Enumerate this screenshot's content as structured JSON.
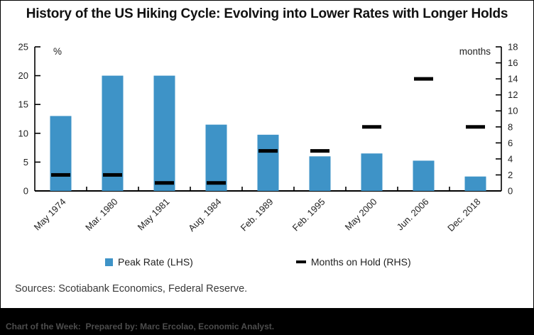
{
  "title": "History of the US Hiking Cycle: Evolving into Lower Rates with Longer Holds",
  "legend": {
    "peak_rate": "Peak Rate (LHS)",
    "months_hold": "Months on Hold (RHS)"
  },
  "sources": "Sources: Scotiabank Economics, Federal Reserve.",
  "footer": "Chart of the Week:  Prepared by: Marc Ercolao, Economic Analyst.",
  "colors": {
    "bar_blue": "#3e93c7",
    "dash_black": "#000000",
    "axis": "#000000",
    "footer_band": "#000000",
    "footer_text": "#4d4d4d"
  },
  "chart_data": {
    "type": "bar",
    "title": "History of the US Hiking Cycle: Evolving into Lower Rates with Longer Holds",
    "categories": [
      "May 1974",
      "Mar. 1980",
      "May 1981",
      "Aug. 1984",
      "Feb. 1989",
      "Feb. 1995",
      "May 2000",
      "Jun. 2006",
      "Dec. 2018"
    ],
    "series": [
      {
        "name": "Peak Rate (LHS)",
        "type": "bar",
        "axis": "left",
        "color": "#3e93c7",
        "values": [
          13,
          20,
          20,
          11.5,
          9.75,
          6,
          6.5,
          5.25,
          2.5
        ]
      },
      {
        "name": "Months on Hold (RHS)",
        "type": "dash",
        "axis": "right",
        "color": "#000000",
        "values": [
          2,
          2,
          1,
          1,
          5,
          5,
          8,
          14,
          8
        ]
      }
    ],
    "left_axis": {
      "unit": "%",
      "min": 0,
      "max": 25,
      "ticks": [
        0,
        5,
        10,
        15,
        20,
        25
      ]
    },
    "right_axis": {
      "unit": "months",
      "min": 0,
      "max": 18,
      "ticks": [
        0,
        2,
        4,
        6,
        8,
        10,
        12,
        14,
        16,
        18
      ]
    },
    "grid": false,
    "legend_position": "bottom",
    "xlabel": "",
    "ylabel_left": "%",
    "ylabel_right": "months"
  }
}
